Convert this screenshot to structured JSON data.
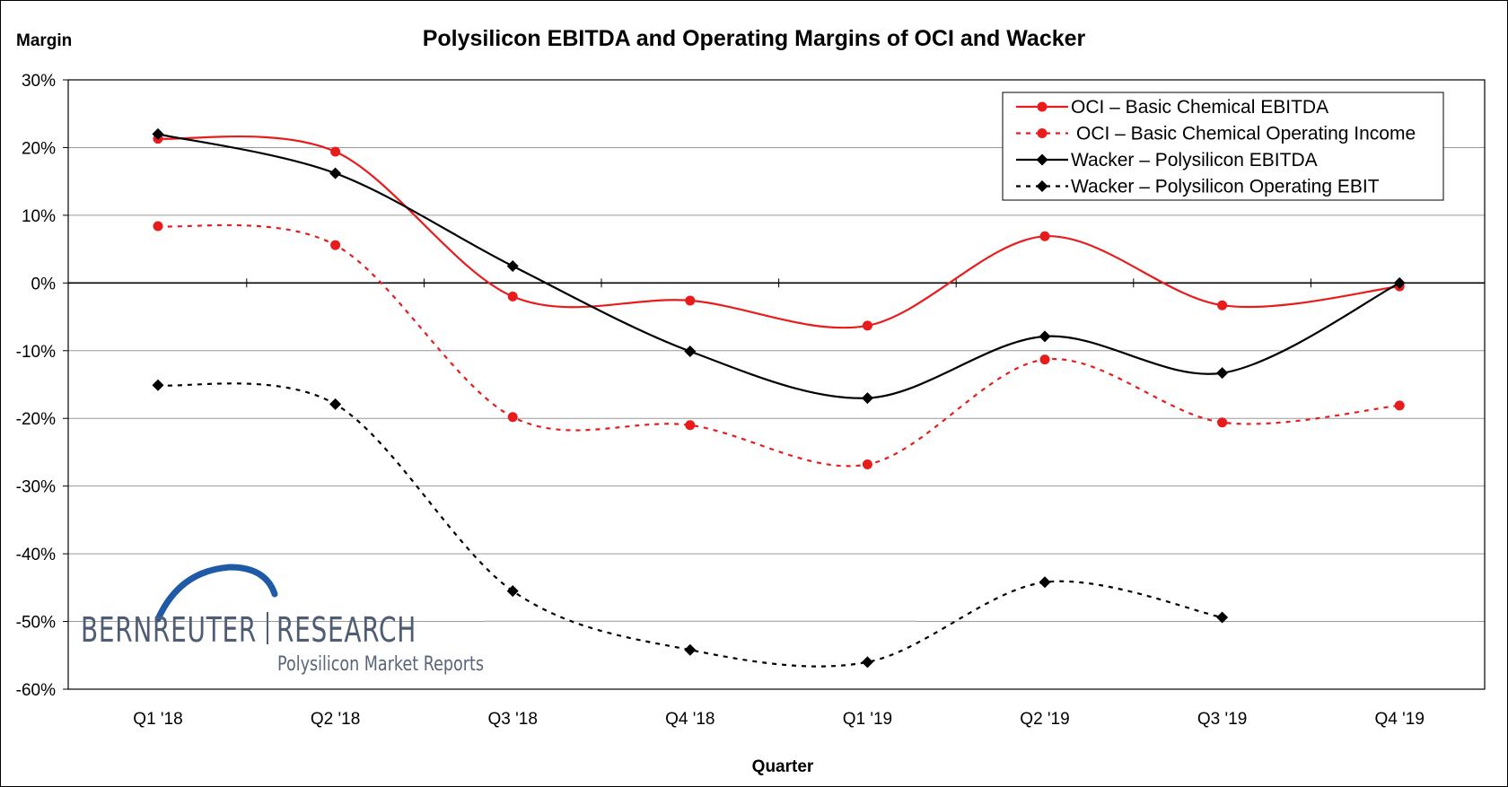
{
  "chart_data": {
    "type": "line",
    "title": "Polysilicon EBITDA and Operating Margins of OCI and Wacker",
    "ylabel": "Margin",
    "xlabel": "Quarter",
    "ylim": [
      -60,
      30
    ],
    "yticks": [
      30,
      20,
      10,
      0,
      -10,
      -20,
      -30,
      -40,
      -50,
      -60
    ],
    "ytick_labels": [
      "30%",
      "20%",
      "10%",
      "0%",
      "-10%",
      "-20%",
      "-30%",
      "-40%",
      "-50%",
      "-60%"
    ],
    "categories": [
      "Q1 '18",
      "Q2 '18",
      "Q3 '18",
      "Q4 '18",
      "Q1 '19",
      "Q2 '19",
      "Q3 '19",
      "Q4 '19"
    ],
    "grid": true,
    "legend_position": "top-right",
    "series": [
      {
        "name": "OCI – Basic Chemical EBITDA",
        "color": "#e81c1c",
        "dashed": false,
        "marker": "circle",
        "values": [
          21.3,
          19.4,
          -2.0,
          -2.6,
          -6.3,
          6.9,
          -3.3,
          -0.5
        ]
      },
      {
        "name": "OCI – Basic Chemical Operating Income",
        "color": "#e81c1c",
        "dashed": true,
        "marker": "circle",
        "values": [
          8.4,
          5.6,
          -19.8,
          -21.0,
          -26.8,
          -11.3,
          -20.6,
          -18.1
        ]
      },
      {
        "name": "Wacker – Polysilicon EBITDA",
        "color": "#000000",
        "dashed": false,
        "marker": "diamond",
        "values": [
          22.0,
          16.2,
          2.5,
          -10.1,
          -17.0,
          -7.9,
          -13.3,
          0.0
        ]
      },
      {
        "name": "Wacker – Polysilicon Operating EBIT",
        "color": "#000000",
        "dashed": true,
        "marker": "diamond",
        "values": [
          -15.1,
          -17.9,
          -45.5,
          -54.2,
          -56.0,
          -44.2,
          -49.4,
          null
        ]
      }
    ]
  },
  "logo": {
    "name": "BERNREUTER RESEARCH",
    "word1": "BERNREUTER",
    "word2": "RESEARCH",
    "tagline": "Polysilicon Market Reports",
    "color": "#4f5d74",
    "arc_color": "#1f5aa6"
  }
}
